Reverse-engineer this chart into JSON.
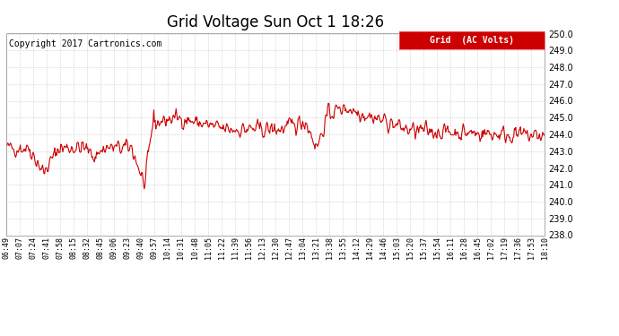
{
  "title": "Grid Voltage Sun Oct 1 18:26",
  "copyright": "Copyright 2017 Cartronics.com",
  "legend_label": "Grid  (AC Volts)",
  "legend_bg": "#cc0000",
  "legend_fg": "#ffffff",
  "line_color": "#cc0000",
  "background_color": "#ffffff",
  "ylim": [
    238.0,
    250.0
  ],
  "yticks": [
    238.0,
    239.0,
    240.0,
    241.0,
    242.0,
    243.0,
    244.0,
    245.0,
    246.0,
    247.0,
    248.0,
    249.0,
    250.0
  ],
  "xtick_labels": [
    "06:49",
    "07:07",
    "07:24",
    "07:41",
    "07:58",
    "08:15",
    "08:32",
    "08:45",
    "09:06",
    "09:23",
    "09:40",
    "09:57",
    "10:14",
    "10:31",
    "10:48",
    "11:05",
    "11:22",
    "11:39",
    "11:56",
    "12:13",
    "12:30",
    "12:47",
    "13:04",
    "13:21",
    "13:38",
    "13:55",
    "14:12",
    "14:29",
    "14:46",
    "15:03",
    "15:20",
    "15:37",
    "15:54",
    "16:11",
    "16:28",
    "16:45",
    "17:02",
    "17:19",
    "17:36",
    "17:53",
    "18:10"
  ],
  "grid_color": "#bbbbbb",
  "grid_linestyle": ":",
  "line_width": 0.8,
  "title_fontsize": 12,
  "copyright_fontsize": 7,
  "ytick_fontsize": 7,
  "xtick_fontsize": 6
}
